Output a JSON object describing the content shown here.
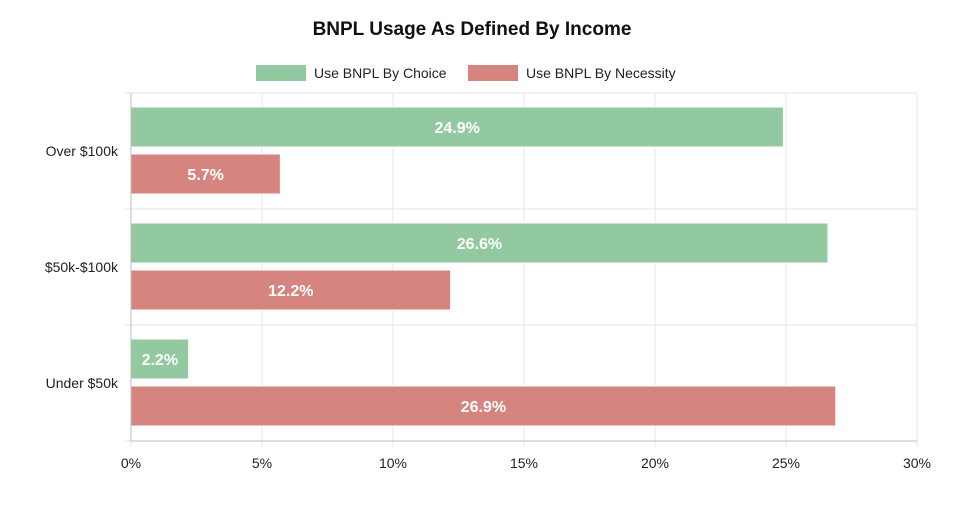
{
  "chart_data": {
    "type": "bar",
    "orientation": "horizontal",
    "title": "BNPL Usage As Defined By Income",
    "xlabel": "",
    "ylabel": "",
    "categories": [
      "Over $100k",
      "$50k-$100k",
      "Under $50k"
    ],
    "series": [
      {
        "name": "Use BNPL By Choice",
        "color": "#93c9a0",
        "values": [
          24.9,
          26.6,
          2.2
        ]
      },
      {
        "name": "Use BNPL By Necessity",
        "color": "#d6847f",
        "values": [
          5.7,
          12.2,
          26.9
        ]
      }
    ],
    "data_labels": [
      [
        "24.9%",
        "26.6%",
        "2.2%"
      ],
      [
        "5.7%",
        "12.2%",
        "26.9%"
      ]
    ],
    "xlim": [
      0,
      30
    ],
    "x_ticks": [
      0,
      5,
      10,
      15,
      20,
      25,
      30
    ],
    "x_tick_labels": [
      "0%",
      "5%",
      "10%",
      "15%",
      "20%",
      "25%",
      "30%"
    ],
    "grid": true,
    "legend_position": "top"
  }
}
